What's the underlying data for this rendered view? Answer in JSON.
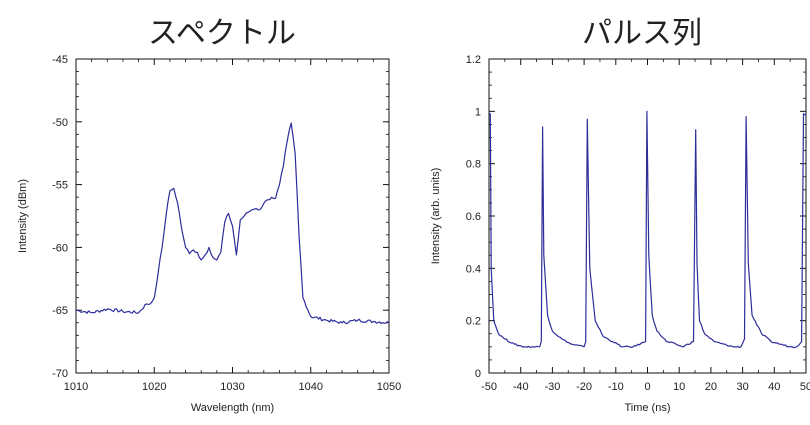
{
  "chart_data": [
    {
      "type": "line",
      "title": "スペクトル",
      "xlabel": "Wavelength (nm)",
      "ylabel": "Intensity (dBm)",
      "xlim": [
        1010,
        1050
      ],
      "ylim": [
        -70,
        -45
      ],
      "x_ticks": [
        1010,
        1020,
        1030,
        1040,
        1050
      ],
      "y_ticks": [
        -70,
        -65,
        -60,
        -55,
        -50,
        -45
      ],
      "x_tick_labels": [
        "1010",
        "1020",
        "1030",
        "1040",
        "1050"
      ],
      "y_tick_labels": [
        "-70",
        "-65",
        "-60",
        "-55",
        "-50",
        "-45"
      ],
      "grid": false,
      "line_color": "#2d2d9b",
      "series": [
        {
          "x": [
            1010,
            1012,
            1014,
            1016,
            1018,
            1019,
            1019.5,
            1020,
            1020.5,
            1021,
            1021.5,
            1022,
            1022.5,
            1023,
            1023.5,
            1024,
            1024.5,
            1025,
            1025.5,
            1026,
            1026.5,
            1027,
            1027.5,
            1028,
            1028.5,
            1029,
            1029.5,
            1030,
            1030.5,
            1031,
            1031.5,
            1032,
            1032.5,
            1033,
            1033.5,
            1034,
            1034.5,
            1035,
            1035.5,
            1036,
            1036.5,
            1037,
            1037.5,
            1038,
            1038.5,
            1039,
            1040,
            1042,
            1044,
            1046,
            1048,
            1050
          ],
          "y": [
            -65,
            -65.2,
            -64.9,
            -65.1,
            -65.2,
            -64.5,
            -64.5,
            -64,
            -62,
            -60,
            -57.5,
            -55.5,
            -55.3,
            -56.5,
            -58.5,
            -60,
            -60.5,
            -60.2,
            -60.4,
            -61,
            -60.6,
            -60,
            -60.8,
            -61,
            -60.4,
            -58,
            -57.3,
            -58.3,
            -60.6,
            -57.8,
            -57.5,
            -57.2,
            -57,
            -56.9,
            -57,
            -56.5,
            -56.2,
            -56,
            -56.1,
            -55,
            -53.5,
            -51.5,
            -50.1,
            -52.5,
            -59,
            -64,
            -65.5,
            -65.8,
            -66,
            -65.8,
            -65.9,
            -66
          ]
        }
      ]
    },
    {
      "type": "line",
      "title": "パルス列",
      "xlabel": "Time (ns)",
      "ylabel": "Intensity (arb. units)",
      "xlim": [
        -50,
        50
      ],
      "ylim": [
        0,
        1.2
      ],
      "x_ticks": [
        -50,
        -40,
        -30,
        -20,
        -10,
        0,
        10,
        20,
        30,
        40,
        50
      ],
      "y_ticks": [
        0,
        0.2,
        0.4,
        0.6,
        0.8,
        1,
        1.2
      ],
      "x_tick_labels": [
        "-50",
        "-40",
        "-30",
        "-20",
        "-10",
        "0",
        "10",
        "20",
        "30",
        "40",
        "50"
      ],
      "y_tick_labels": [
        "0",
        "0.2",
        "0.4",
        "0.6",
        "0.8",
        "1",
        "1.2"
      ],
      "grid": false,
      "line_color": "#2d2d9b",
      "series": [
        {
          "x": [
            -50,
            -49.6,
            -49.3,
            -48.5,
            -47,
            -45,
            -42,
            -39,
            -36,
            -34,
            -33.5,
            -33.1,
            -32.7,
            -31.5,
            -30,
            -27,
            -24,
            -20,
            -19.5,
            -19,
            -18.2,
            -16.5,
            -14,
            -11,
            -8,
            -4.5,
            -0.6,
            -0.2,
            0.4,
            1.5,
            3,
            6,
            9,
            11,
            14.5,
            15.2,
            15.6,
            16.4,
            18,
            21,
            24,
            27,
            29.5,
            30.6,
            31.1,
            31.8,
            33,
            36,
            39,
            42,
            45,
            47,
            48.6,
            49.2,
            50
          ],
          "y": [
            0.99,
            0.99,
            0.4,
            0.2,
            0.15,
            0.13,
            0.11,
            0.1,
            0.1,
            0.1,
            0.12,
            0.94,
            0.45,
            0.22,
            0.16,
            0.13,
            0.11,
            0.1,
            0.12,
            0.97,
            0.4,
            0.2,
            0.14,
            0.12,
            0.1,
            0.1,
            0.12,
            1.0,
            0.45,
            0.22,
            0.16,
            0.12,
            0.11,
            0.1,
            0.12,
            0.93,
            0.42,
            0.2,
            0.15,
            0.12,
            0.11,
            0.1,
            0.1,
            0.13,
            0.98,
            0.42,
            0.22,
            0.15,
            0.12,
            0.11,
            0.1,
            0.1,
            0.12,
            0.99,
            0.99
          ]
        }
      ]
    }
  ]
}
